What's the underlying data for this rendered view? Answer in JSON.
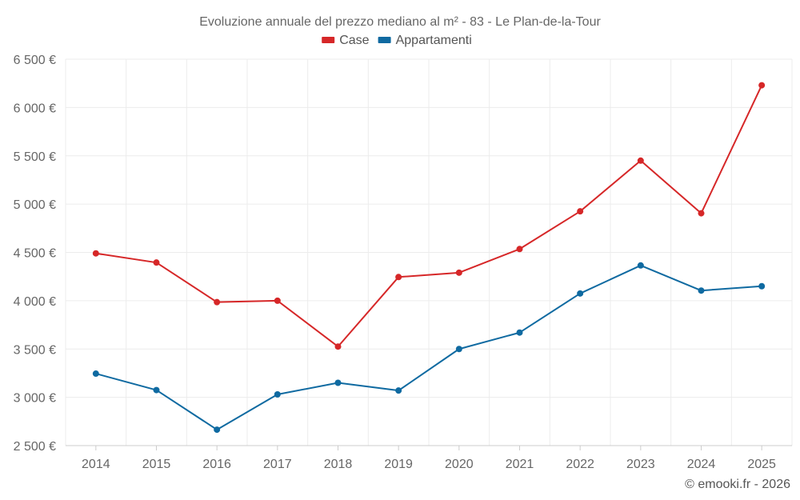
{
  "chart_data": {
    "type": "line",
    "title": "Evoluzione annuale del prezzo mediano al m² - 83 - Le Plan-de-la-Tour",
    "categories": [
      "2014",
      "2015",
      "2016",
      "2017",
      "2018",
      "2019",
      "2020",
      "2021",
      "2022",
      "2023",
      "2024",
      "2025"
    ],
    "series": [
      {
        "name": "Case",
        "color": "#d62728",
        "values": [
          4490,
          4395,
          3985,
          4000,
          3525,
          4245,
          4290,
          4535,
          4925,
          5450,
          4905,
          6230
        ]
      },
      {
        "name": "Appartamenti",
        "color": "#0f6aa1",
        "values": [
          3245,
          3075,
          2665,
          3030,
          3150,
          3070,
          3500,
          3670,
          4075,
          4365,
          4105,
          4150
        ]
      }
    ],
    "ylim": [
      2500,
      6500
    ],
    "yticks": [
      2500,
      3000,
      3500,
      4000,
      4500,
      5000,
      5500,
      6000,
      6500
    ],
    "ytick_labels": [
      "2 500 €",
      "3 000 €",
      "3 500 €",
      "4 000 €",
      "4 500 €",
      "5 000 €",
      "5 500 €",
      "6 000 €",
      "6 500 €"
    ],
    "xlabel": "",
    "ylabel": "",
    "grid": true,
    "legend_position": "top-center"
  },
  "credit": "© emooki.fr - 2026"
}
